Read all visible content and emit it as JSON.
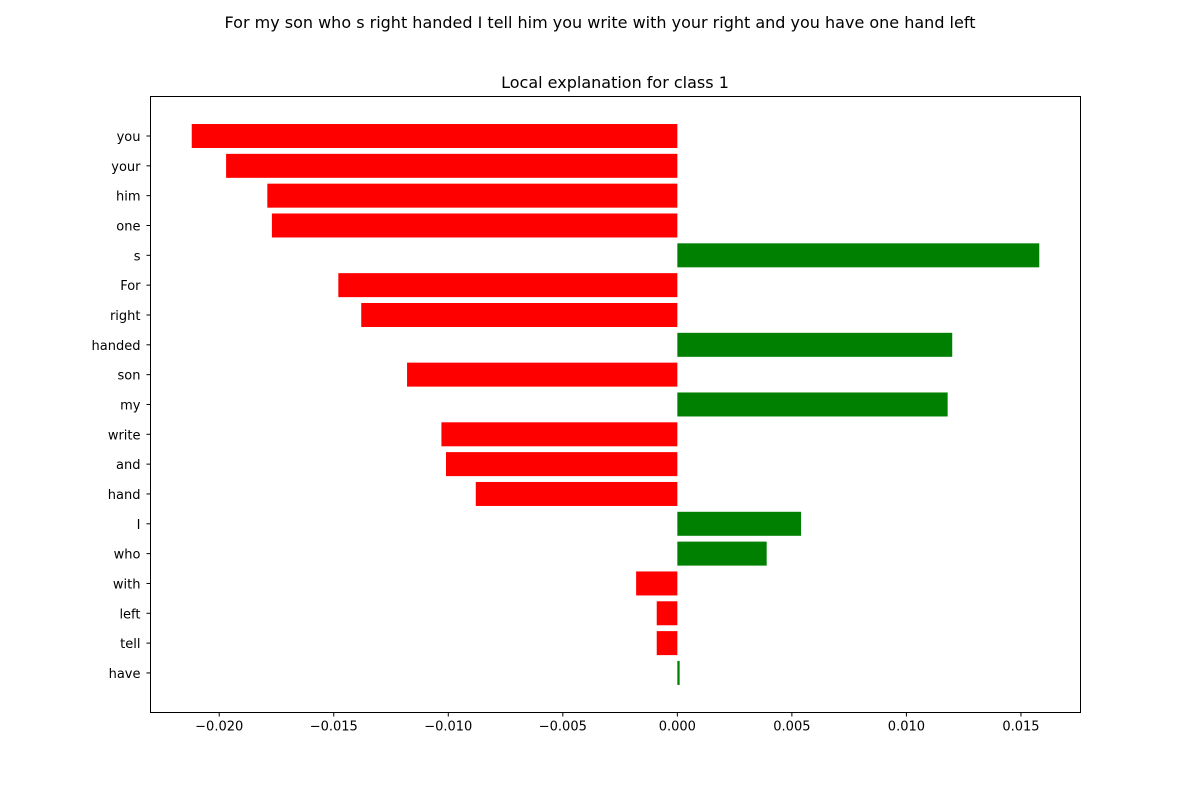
{
  "figure": {
    "suptitle": "For my son who s right handed I tell him you write with your right and you have one hand left"
  },
  "chart_data": {
    "type": "bar",
    "orientation": "horizontal",
    "title": "Local explanation for class 1",
    "xlabel": "",
    "ylabel": "",
    "xlim": [
      -0.023,
      0.0176
    ],
    "xticks": [
      -0.02,
      -0.015,
      -0.01,
      -0.005,
      0.0,
      0.005,
      0.01,
      0.015
    ],
    "xtick_labels": [
      "−0.020",
      "−0.015",
      "−0.010",
      "−0.005",
      "0.000",
      "0.005",
      "0.010",
      "0.015"
    ],
    "categories": [
      "you",
      "your",
      "him",
      "one",
      "s",
      "For",
      "right",
      "handed",
      "son",
      "my",
      "write",
      "and",
      "hand",
      "I",
      "who",
      "with",
      "left",
      "tell",
      "have"
    ],
    "values": [
      -0.0212,
      -0.0197,
      -0.0179,
      -0.0177,
      0.0158,
      -0.0148,
      -0.0138,
      0.012,
      -0.0118,
      0.0118,
      -0.0103,
      -0.0101,
      -0.0088,
      0.0054,
      0.0039,
      -0.0018,
      -0.0009,
      -0.0009,
      0.0001
    ],
    "positive_color": "#008000",
    "negative_color": "#ff0000",
    "grid": false,
    "legend": "none"
  }
}
